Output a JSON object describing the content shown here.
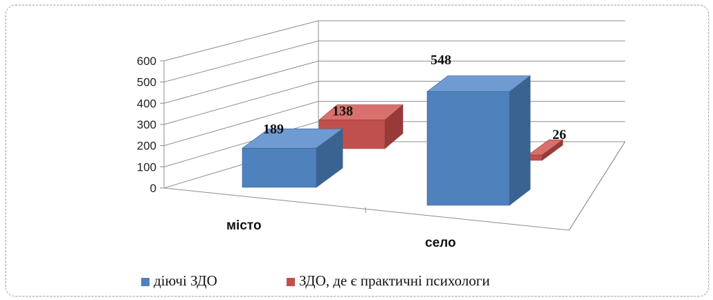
{
  "chart_data": {
    "type": "bar",
    "categories": [
      "місто",
      "село"
    ],
    "series": [
      {
        "name": "діючі ЗДО",
        "values": [
          189,
          548
        ]
      },
      {
        "name": "ЗДО, де є практичні психологи",
        "values": [
          138,
          26
        ]
      }
    ],
    "yticks": [
      "0",
      "100",
      "200",
      "300",
      "400",
      "500",
      "600"
    ],
    "ylim": [
      0,
      600
    ],
    "grid": true,
    "legend": "bottom",
    "colors": [
      "#4f81bd",
      "#c0504d"
    ]
  }
}
